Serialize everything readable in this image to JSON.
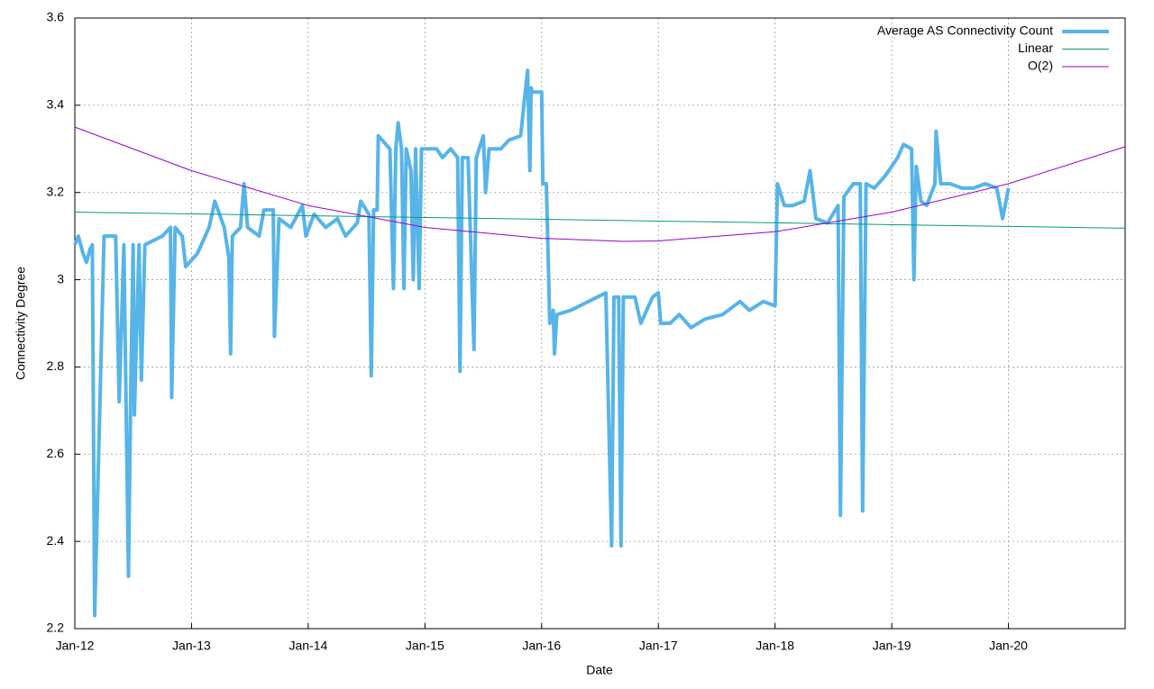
{
  "chart_data": {
    "type": "line",
    "xlabel": "Date",
    "ylabel": "Connectivity Degree",
    "xlim": [
      2012,
      2021
    ],
    "ylim": [
      2.2,
      3.6
    ],
    "xticks": [
      {
        "value": 2012,
        "label": "Jan-12"
      },
      {
        "value": 2013,
        "label": "Jan-13"
      },
      {
        "value": 2014,
        "label": "Jan-14"
      },
      {
        "value": 2015,
        "label": "Jan-15"
      },
      {
        "value": 2016,
        "label": "Jan-16"
      },
      {
        "value": 2017,
        "label": "Jan-17"
      },
      {
        "value": 2018,
        "label": "Jan-18"
      },
      {
        "value": 2019,
        "label": "Jan-19"
      },
      {
        "value": 2020,
        "label": "Jan-20"
      }
    ],
    "yticks": [
      2.2,
      2.4,
      2.6,
      2.8,
      3,
      3.2,
      3.4,
      3.6
    ],
    "grid": true,
    "legend": "top-right",
    "series": [
      {
        "name": "Average AS Connectivity Count",
        "color": "#56b4e9",
        "width": 4,
        "x": [
          2012.0,
          2012.03,
          2012.07,
          2012.1,
          2012.13,
          2012.15,
          2012.17,
          2012.25,
          2012.35,
          2012.38,
          2012.42,
          2012.46,
          2012.48,
          2012.5,
          2012.51,
          2012.55,
          2012.57,
          2012.6,
          2012.75,
          2012.82,
          2012.83,
          2012.86,
          2012.92,
          2012.95,
          2013.05,
          2013.15,
          2013.2,
          2013.28,
          2013.32,
          2013.335,
          2013.35,
          2013.42,
          2013.45,
          2013.48,
          2013.58,
          2013.62,
          2013.7,
          2013.71,
          2013.75,
          2013.85,
          2013.95,
          2013.98,
          2014.05,
          2014.15,
          2014.25,
          2014.32,
          2014.42,
          2014.45,
          2014.52,
          2014.54,
          2014.56,
          2014.59,
          2014.6,
          2014.7,
          2014.73,
          2014.75,
          2014.77,
          2014.8,
          2014.82,
          2014.84,
          2014.88,
          2014.9,
          2014.92,
          2014.95,
          2014.97,
          2015.05,
          2015.1,
          2015.15,
          2015.22,
          2015.28,
          2015.3,
          2015.32,
          2015.37,
          2015.42,
          2015.44,
          2015.5,
          2015.52,
          2015.55,
          2015.6,
          2015.65,
          2015.72,
          2015.82,
          2015.88,
          2015.9,
          2015.91,
          2015.92,
          2016.0,
          2016.01,
          2016.04,
          2016.07,
          2016.1,
          2016.11,
          2016.13,
          2016.25,
          2016.4,
          2016.55,
          2016.6,
          2016.62,
          2016.66,
          2016.68,
          2016.7,
          2016.8,
          2016.85,
          2016.95,
          2017.0,
          2017.02,
          2017.1,
          2017.18,
          2017.28,
          2017.4,
          2017.55,
          2017.7,
          2017.78,
          2017.9,
          2018.0,
          2018.02,
          2018.08,
          2018.15,
          2018.25,
          2018.3,
          2018.35,
          2018.45,
          2018.54,
          2018.56,
          2018.59,
          2018.67,
          2018.73,
          2018.75,
          2018.78,
          2018.85,
          2018.95,
          2019.05,
          2019.1,
          2019.17,
          2019.19,
          2019.21,
          2019.25,
          2019.3,
          2019.37,
          2019.38,
          2019.42,
          2019.5,
          2019.6,
          2019.7,
          2019.8,
          2019.9,
          2019.95,
          2020.0
        ],
        "values": [
          3.08,
          3.1,
          3.06,
          3.04,
          3.07,
          3.08,
          2.23,
          3.1,
          3.1,
          2.72,
          3.08,
          2.32,
          2.76,
          3.08,
          2.69,
          3.08,
          2.77,
          3.08,
          3.1,
          3.12,
          2.73,
          3.12,
          3.1,
          3.03,
          3.06,
          3.12,
          3.18,
          3.12,
          3.05,
          2.83,
          3.1,
          3.12,
          3.22,
          3.12,
          3.1,
          3.16,
          3.16,
          2.87,
          3.14,
          3.12,
          3.17,
          3.1,
          3.15,
          3.12,
          3.14,
          3.1,
          3.13,
          3.18,
          3.15,
          2.78,
          3.16,
          3.16,
          3.33,
          3.3,
          2.98,
          3.3,
          3.36,
          3.3,
          2.98,
          3.3,
          3.25,
          3.0,
          3.3,
          2.98,
          3.3,
          3.3,
          3.3,
          3.28,
          3.3,
          3.28,
          2.79,
          3.28,
          3.28,
          2.84,
          3.28,
          3.33,
          3.2,
          3.3,
          3.3,
          3.3,
          3.32,
          3.33,
          3.48,
          3.25,
          3.44,
          3.43,
          3.43,
          3.22,
          3.22,
          2.9,
          2.93,
          2.83,
          2.92,
          2.93,
          2.95,
          2.97,
          2.39,
          2.96,
          2.96,
          2.39,
          2.96,
          2.96,
          2.9,
          2.96,
          2.97,
          2.9,
          2.9,
          2.92,
          2.89,
          2.91,
          2.92,
          2.95,
          2.93,
          2.95,
          2.94,
          3.22,
          3.17,
          3.17,
          3.18,
          3.25,
          3.14,
          3.13,
          3.17,
          2.46,
          3.19,
          3.22,
          3.22,
          2.47,
          3.22,
          3.21,
          3.24,
          3.28,
          3.31,
          3.3,
          3.0,
          3.26,
          3.18,
          3.17,
          3.22,
          3.34,
          3.22,
          3.22,
          3.21,
          3.21,
          3.22,
          3.21,
          3.14,
          3.21
        ]
      },
      {
        "name": "Linear",
        "color": "#009e73",
        "width": 1,
        "x": [
          2012,
          2021
        ],
        "values": [
          3.155,
          3.118
        ]
      },
      {
        "name": "O(2)",
        "color": "#9400d3",
        "width": 1,
        "x": [
          2012,
          2013,
          2014,
          2015,
          2016,
          2016.7,
          2017,
          2018,
          2019,
          2020,
          2021
        ],
        "values": [
          3.35,
          3.25,
          3.17,
          3.12,
          3.095,
          3.088,
          3.089,
          3.11,
          3.155,
          3.22,
          3.305
        ]
      }
    ]
  }
}
